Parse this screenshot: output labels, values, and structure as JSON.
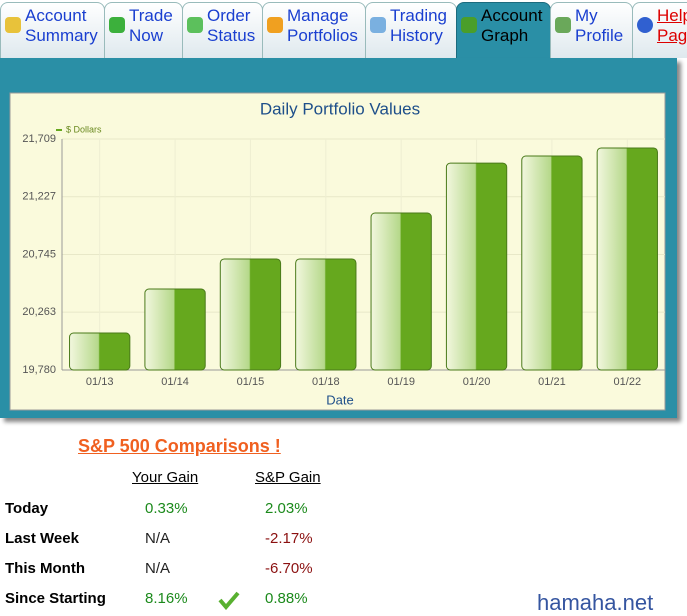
{
  "tabs": [
    [
      "Account",
      "Summary"
    ],
    [
      "Trade",
      "Now"
    ],
    [
      "Order",
      "Status"
    ],
    [
      "Manage",
      "Portfolios"
    ],
    [
      "Trading",
      "History"
    ],
    [
      "Account",
      "Graph"
    ],
    [
      "My",
      "Profile"
    ],
    [
      "Help",
      "Page"
    ]
  ],
  "chart_data": {
    "type": "bar",
    "title": "Daily Portfolio Values",
    "x_label": "Date",
    "categories": [
      "01/13",
      "01/14",
      "01/15",
      "01/18",
      "01/19",
      "01/20",
      "01/21",
      "01/22"
    ],
    "series": [
      {
        "name": "$ Dollars",
        "color": "#66a81e",
        "values": [
          20089,
          20456,
          20707,
          20707,
          21091,
          21508,
          21567,
          21634
        ]
      }
    ],
    "ylim": [
      19780,
      21709
    ],
    "yticks": [
      {
        "value": 19780,
        "label": "19,780"
      },
      {
        "value": 20263,
        "label": "20,263"
      },
      {
        "value": 20745,
        "label": "20,745"
      },
      {
        "value": 21227,
        "label": "21,227"
      },
      {
        "value": 21709,
        "label": "21,709"
      }
    ],
    "grid": true,
    "legend": "top-left"
  },
  "comparisons": {
    "title": "S&P 500 Comparisons !",
    "headers": [
      "Your Gain",
      "S&P Gain"
    ],
    "rows": [
      [
        "Today",
        "0.33%",
        "2.03%"
      ],
      [
        "Last Week",
        "N/A",
        "-2.17%"
      ],
      [
        "This Month",
        "N/A",
        "-6.70%"
      ],
      [
        "Since Starting",
        "8.16%",
        "0.88%"
      ]
    ]
  },
  "watermark": "hamaha.net"
}
